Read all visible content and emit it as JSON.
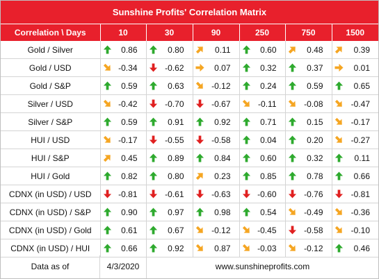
{
  "title": "Sunshine Profits' Correlation Matrix",
  "header": {
    "first_col": "Correlation \\ Days",
    "columns": [
      "10",
      "30",
      "90",
      "250",
      "750",
      "1500"
    ]
  },
  "colors": {
    "header_bg": "#e8202c",
    "up": "#2eaa2e",
    "down": "#e02020",
    "neutral": "#f5a623"
  },
  "rows": [
    {
      "pair": "Gold / Silver",
      "cells": [
        {
          "value": "0.86",
          "arrow": "up"
        },
        {
          "value": "0.80",
          "arrow": "up"
        },
        {
          "value": "0.11",
          "arrow": "up-right"
        },
        {
          "value": "0.60",
          "arrow": "up"
        },
        {
          "value": "0.48",
          "arrow": "up-right"
        },
        {
          "value": "0.39",
          "arrow": "up-right"
        }
      ]
    },
    {
      "pair": "Gold / USD",
      "cells": [
        {
          "value": "-0.34",
          "arrow": "down-right"
        },
        {
          "value": "-0.62",
          "arrow": "down"
        },
        {
          "value": "0.07",
          "arrow": "right"
        },
        {
          "value": "0.32",
          "arrow": "up"
        },
        {
          "value": "0.37",
          "arrow": "up"
        },
        {
          "value": "0.01",
          "arrow": "right"
        }
      ]
    },
    {
      "pair": "Gold / S&P",
      "cells": [
        {
          "value": "0.59",
          "arrow": "up"
        },
        {
          "value": "0.63",
          "arrow": "up"
        },
        {
          "value": "-0.12",
          "arrow": "down-right"
        },
        {
          "value": "0.24",
          "arrow": "up"
        },
        {
          "value": "0.59",
          "arrow": "up"
        },
        {
          "value": "0.65",
          "arrow": "up"
        }
      ]
    },
    {
      "pair": "Silver / USD",
      "cells": [
        {
          "value": "-0.42",
          "arrow": "down-right"
        },
        {
          "value": "-0.70",
          "arrow": "down"
        },
        {
          "value": "-0.67",
          "arrow": "down"
        },
        {
          "value": "-0.11",
          "arrow": "down-right"
        },
        {
          "value": "-0.08",
          "arrow": "down-right"
        },
        {
          "value": "-0.47",
          "arrow": "down-right"
        }
      ]
    },
    {
      "pair": "Silver / S&P",
      "cells": [
        {
          "value": "0.59",
          "arrow": "up"
        },
        {
          "value": "0.91",
          "arrow": "up"
        },
        {
          "value": "0.92",
          "arrow": "up"
        },
        {
          "value": "0.71",
          "arrow": "up"
        },
        {
          "value": "0.15",
          "arrow": "up"
        },
        {
          "value": "-0.17",
          "arrow": "down-right"
        }
      ]
    },
    {
      "pair": "HUI / USD",
      "cells": [
        {
          "value": "-0.17",
          "arrow": "down-right"
        },
        {
          "value": "-0.55",
          "arrow": "down"
        },
        {
          "value": "-0.58",
          "arrow": "down"
        },
        {
          "value": "0.04",
          "arrow": "up"
        },
        {
          "value": "0.20",
          "arrow": "up"
        },
        {
          "value": "-0.27",
          "arrow": "down-right"
        }
      ]
    },
    {
      "pair": "HUI / S&P",
      "cells": [
        {
          "value": "0.45",
          "arrow": "up-right"
        },
        {
          "value": "0.89",
          "arrow": "up"
        },
        {
          "value": "0.84",
          "arrow": "up"
        },
        {
          "value": "0.60",
          "arrow": "up"
        },
        {
          "value": "0.32",
          "arrow": "up"
        },
        {
          "value": "0.11",
          "arrow": "up"
        }
      ]
    },
    {
      "pair": "HUI / Gold",
      "cells": [
        {
          "value": "0.82",
          "arrow": "up"
        },
        {
          "value": "0.80",
          "arrow": "up"
        },
        {
          "value": "0.23",
          "arrow": "up-right"
        },
        {
          "value": "0.85",
          "arrow": "up"
        },
        {
          "value": "0.78",
          "arrow": "up"
        },
        {
          "value": "0.66",
          "arrow": "up"
        }
      ]
    },
    {
      "pair": "CDNX (in USD) / USD",
      "cells": [
        {
          "value": "-0.81",
          "arrow": "down"
        },
        {
          "value": "-0.61",
          "arrow": "down"
        },
        {
          "value": "-0.63",
          "arrow": "down"
        },
        {
          "value": "-0.60",
          "arrow": "down"
        },
        {
          "value": "-0.76",
          "arrow": "down"
        },
        {
          "value": "-0.81",
          "arrow": "down"
        }
      ]
    },
    {
      "pair": "CDNX (in USD) / S&P",
      "cells": [
        {
          "value": "0.90",
          "arrow": "up"
        },
        {
          "value": "0.97",
          "arrow": "up"
        },
        {
          "value": "0.98",
          "arrow": "up"
        },
        {
          "value": "0.54",
          "arrow": "up"
        },
        {
          "value": "-0.49",
          "arrow": "down-right"
        },
        {
          "value": "-0.36",
          "arrow": "down-right"
        }
      ]
    },
    {
      "pair": "CDNX (in USD) / Gold",
      "cells": [
        {
          "value": "0.61",
          "arrow": "up"
        },
        {
          "value": "0.67",
          "arrow": "up"
        },
        {
          "value": "-0.12",
          "arrow": "down-right"
        },
        {
          "value": "-0.45",
          "arrow": "down-right"
        },
        {
          "value": "-0.58",
          "arrow": "down"
        },
        {
          "value": "-0.10",
          "arrow": "down-right"
        }
      ]
    },
    {
      "pair": "CDNX (in USD) / HUI",
      "cells": [
        {
          "value": "0.66",
          "arrow": "up"
        },
        {
          "value": "0.92",
          "arrow": "up"
        },
        {
          "value": "0.87",
          "arrow": "down-right"
        },
        {
          "value": "-0.03",
          "arrow": "down-right"
        },
        {
          "value": "-0.12",
          "arrow": "down-right"
        },
        {
          "value": "0.46",
          "arrow": "up"
        }
      ]
    }
  ],
  "footer": {
    "label": "Data as of",
    "date": "4/3/2020",
    "site": "www.sunshineprofits.com"
  }
}
